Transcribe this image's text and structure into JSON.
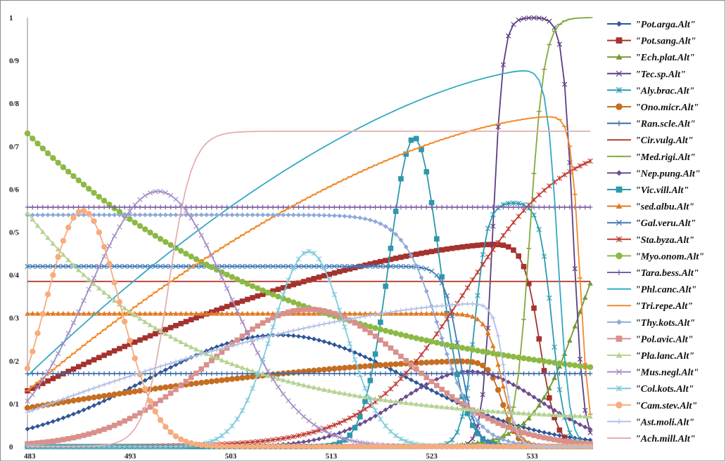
{
  "chart_data": {
    "type": "line",
    "x_range": [
      483,
      539
    ],
    "ylim": [
      0,
      1
    ],
    "x_ticks": [
      "483",
      "493",
      "503",
      "513",
      "523",
      "533"
    ],
    "y_ticks": [
      "0",
      "0/1",
      "0/2",
      "0/3",
      "0/4",
      "0/5",
      "0/6",
      "0/7",
      "0/8",
      "0/9",
      "1"
    ],
    "legend_position": "right",
    "grid": false,
    "series": [
      {
        "name": "\"Pot.arga.Alt\"",
        "color": "#2E5597",
        "marker": "diamond",
        "curve": "gauss",
        "params": {
          "base": 0.0,
          "amp": 0.26,
          "mu": 508,
          "sigma": 13
        }
      },
      {
        "name": "\"Pot.sang.Alt\"",
        "color": "#A5322F",
        "marker": "square",
        "curve": "rise_drop",
        "params": {
          "y0": 0.13,
          "y1": 0.475,
          "x1": 531.5,
          "drop": 534,
          "sd": 0.8
        }
      },
      {
        "name": "\"Ech.plat.Alt\"",
        "color": "#6E9A32",
        "marker": "triangle",
        "curve": "logistic",
        "params": {
          "amp": 0.63,
          "x0": 538,
          "k": 0.42
        }
      },
      {
        "name": "\"Tec.sp.Alt\"",
        "color": "#5C3F80",
        "marker": "x",
        "curve": "plateau",
        "params": {
          "amp": 1.0,
          "a": 529.3,
          "b": 537.3,
          "k": 2.0
        }
      },
      {
        "name": "\"Aly.brac.Alt\"",
        "color": "#2B9BB3",
        "marker": "star",
        "curve": "plateau",
        "params": {
          "amp": 0.57,
          "a": 527.5,
          "b": 535.2,
          "k": 1.6
        }
      },
      {
        "name": "\"Ono.micr.Alt\"",
        "color": "#C56E23",
        "marker": "circle",
        "curve": "rise_drop",
        "params": {
          "y0": 0.09,
          "y1": 0.2,
          "x1": 528.5,
          "drop": 530.3,
          "sd": 0.7
        }
      },
      {
        "name": "\"Ran.scle.Alt\"",
        "color": "#3D6AA8",
        "marker": "plus",
        "curve": "const",
        "params": {
          "v": 0.17
        }
      },
      {
        "name": "\"Cir.vulg.Alt\"",
        "color": "#B43B32",
        "marker": "none",
        "curve": "const",
        "params": {
          "v": 0.385
        }
      },
      {
        "name": "\"Med.rigi.Alt\"",
        "color": "#84A83F",
        "marker": "dash",
        "curve": "logistic",
        "params": {
          "amp": 1.0,
          "x0": 533,
          "k": 1.4
        }
      },
      {
        "name": "\"Nep.pung.Alt\"",
        "color": "#6A4D8E",
        "marker": "diamond",
        "curve": "gauss",
        "params": {
          "base": 0.0,
          "amp": 0.175,
          "mu": 527,
          "sigma": 7
        }
      },
      {
        "name": "\"Vic.vill.Alt\"",
        "color": "#2E97AC",
        "marker": "square",
        "curve": "gauss",
        "params": {
          "base": 0.0,
          "amp": 0.72,
          "mu": 521.5,
          "sigma": 2.5
        }
      },
      {
        "name": "\"sed.albu.Alt\"",
        "color": "#E07B26",
        "marker": "triangle",
        "curve": "plateau",
        "params": {
          "amp": 0.31,
          "a": 470,
          "b": 530.2,
          "k": 1.3
        }
      },
      {
        "name": "\"Gal.veru.Alt\"",
        "color": "#3F79B8",
        "marker": "x",
        "curve": "plateau",
        "params": {
          "amp": 0.42,
          "a": 470,
          "b": 526,
          "k": 1.3
        }
      },
      {
        "name": "\"Sta.byza.Alt\"",
        "color": "#BF3B33",
        "marker": "star",
        "curve": "logistic",
        "params": {
          "amp": 0.72,
          "x0": 526.5,
          "k": 0.2
        }
      },
      {
        "name": "\"Myo.onom.Alt\"",
        "color": "#8CB944",
        "marker": "circle",
        "curve": "linexp",
        "params": {
          "y0": 0.73,
          "y1": 0.185,
          "tau": 26
        }
      },
      {
        "name": "\"Tara.bess.Alt\"",
        "color": "#7A5FA3",
        "marker": "plus",
        "curve": "const",
        "params": {
          "v": 0.558
        }
      },
      {
        "name": "\"Phl.canc.Alt\"",
        "color": "#35A7C4",
        "marker": "none",
        "curve": "rise_drop",
        "params": {
          "y0": 0.165,
          "y1": 0.882,
          "x1": 534.5,
          "drop": 535.8,
          "sd": 0.55
        }
      },
      {
        "name": "\"Tri.repe.Alt\"",
        "color": "#F08A2A",
        "marker": "dash",
        "curve": "rise_drop",
        "params": {
          "y0": 0.13,
          "y1": 0.77,
          "x1": 535.5,
          "drop": 538,
          "sd": 0.45
        }
      },
      {
        "name": "\"Thy.kots.Alt\"",
        "color": "#8EA9D8",
        "marker": "diamond",
        "curve": "plateau",
        "params": {
          "amp": 0.54,
          "a": 470,
          "b": 524,
          "k": 0.55
        }
      },
      {
        "name": "\"Pol.avic.Alt\"",
        "color": "#D9908C",
        "marker": "square",
        "curve": "gauss",
        "params": {
          "base": 0.0,
          "amp": 0.32,
          "mu": 511,
          "sigma": 10
        }
      },
      {
        "name": "\"Pla.lanc.Alt\"",
        "color": "#B5D394",
        "marker": "triangle",
        "curve": "linexp",
        "params": {
          "y0": 0.545,
          "y1": 0.07,
          "tau": 16
        }
      },
      {
        "name": "\"Mus.negl.Alt\"",
        "color": "#A48EC6",
        "marker": "x",
        "curve": "gauss",
        "params": {
          "base": 0.0,
          "amp": 0.595,
          "mu": 496,
          "sigma": 7
        }
      },
      {
        "name": "\"Col.kots.Alt\"",
        "color": "#7ECBDB",
        "marker": "star",
        "curve": "gauss",
        "params": {
          "base": 0.0,
          "amp": 0.455,
          "mu": 511,
          "sigma": 3.6
        }
      },
      {
        "name": "\"Cam.stev.Alt\"",
        "color": "#F6AC7E",
        "marker": "circle",
        "curve": "gauss",
        "params": {
          "base": 0.0,
          "amp": 0.55,
          "mu": 488.5,
          "sigma": 3.7
        }
      },
      {
        "name": "\"Ast.moli.Alt\"",
        "color": "#AFC0E2",
        "marker": "plus",
        "curve": "rise_drop",
        "params": {
          "y0": 0.08,
          "y1": 0.335,
          "x1": 529,
          "drop": 530.5,
          "sd": 0.55
        }
      },
      {
        "name": "\"Ach.mill.Alt\"",
        "color": "#E5AFAF",
        "marker": "none",
        "curve": "logistic",
        "params": {
          "amp": 0.735,
          "x0": 497,
          "k": 0.85
        }
      }
    ]
  }
}
